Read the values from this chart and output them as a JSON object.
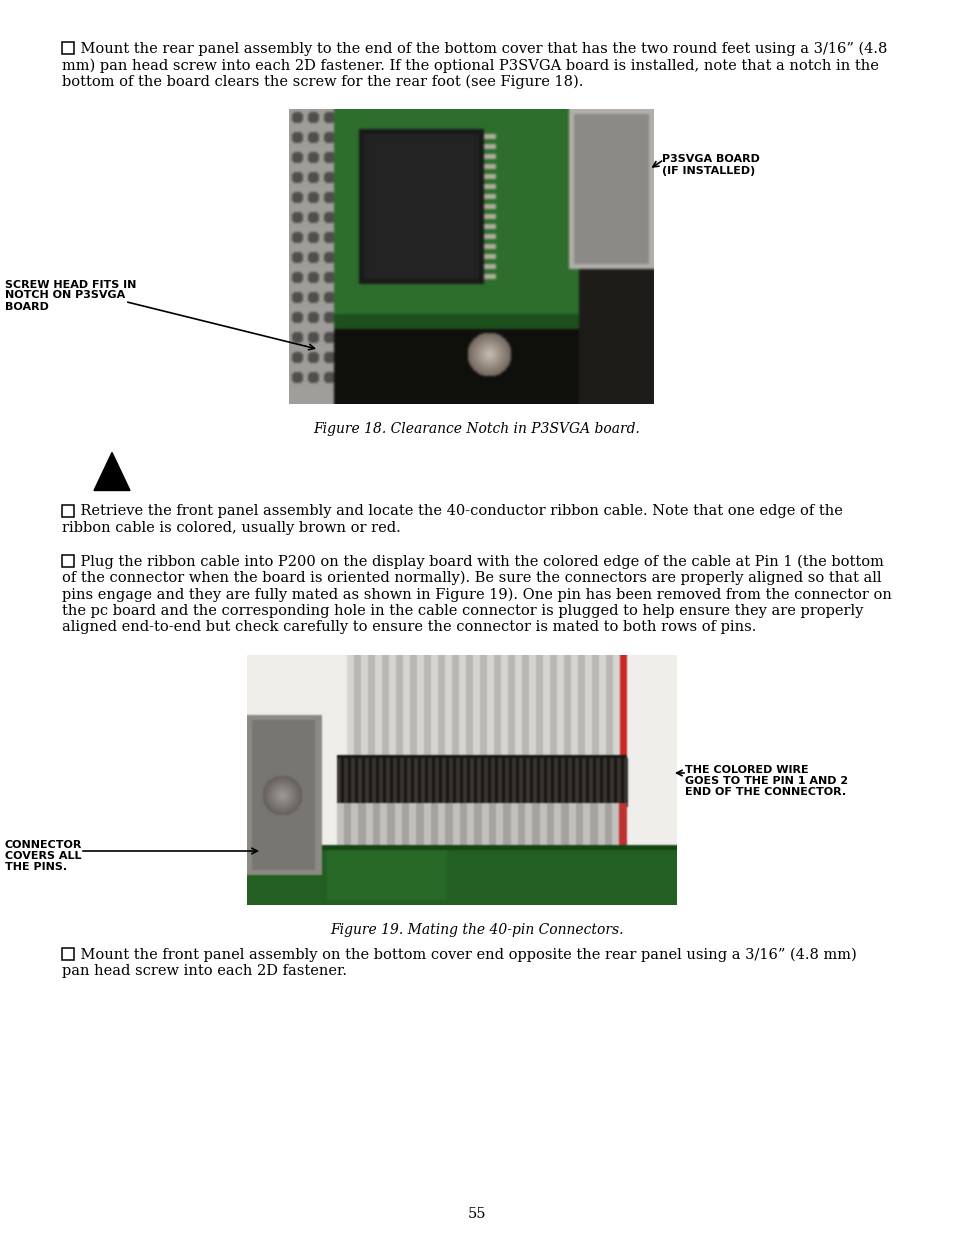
{
  "page_bg": "#ffffff",
  "text_color": "#000000",
  "page_number": "55",
  "para1_lines": [
    "□   Mount the rear panel assembly to the end of the bottom cover that has the two round feet using a 3/16” (4.8",
    "mm) pan head screw into each 2D fastener. If the optional P3SVGA board is installed, note that a notch in the",
    "bottom of the board clears the screw for the rear foot (see Figure 18)."
  ],
  "fig18_caption": "Figure 18. Clearance Notch in P3SVGA board.",
  "ann18_right_1": "P3SVGA BOARD",
  "ann18_right_2": "(IF INSTALLED)",
  "ann18_left_1": "SCREW HEAD FITS IN",
  "ann18_left_2": "NOTCH ON P3SVGA",
  "ann18_left_3": "BOARD",
  "para2_lines": [
    "□   Retrieve the front panel assembly and locate the 40-conductor ribbon cable. Note that one edge of the",
    "ribbon cable is colored, usually brown or red."
  ],
  "para3_lines": [
    "□   Plug the ribbon cable into P200 on the display board with the colored edge of the cable at Pin 1 (the bottom",
    "of the connector when the board is oriented normally). Be sure the connectors are properly aligned so that all",
    "pins engage and they are fully mated as shown in Figure 19). One pin has been removed from the connector on",
    "the pc board and the corresponding hole in the cable connector is plugged to help ensure they are properly",
    "aligned end-to-end but check carefully to ensure the connector is mated to both rows of pins."
  ],
  "fig19_caption": "Figure 19. Mating the 40-pin Connectors.",
  "ann19_right_1": "THE COLORED WIRE",
  "ann19_right_2": "GOES TO THE PIN 1 AND 2",
  "ann19_right_3": "END OF THE CONNECTOR.",
  "ann19_left_1": "CONNECTOR",
  "ann19_left_2": "COVERS ALL",
  "ann19_left_3": "THE PINS.",
  "para4_lines": [
    "□   Mount the front panel assembly on the bottom cover end opposite the rear panel using a 3/16” (4.8 mm)",
    "pan head screw into each 2D fastener."
  ]
}
